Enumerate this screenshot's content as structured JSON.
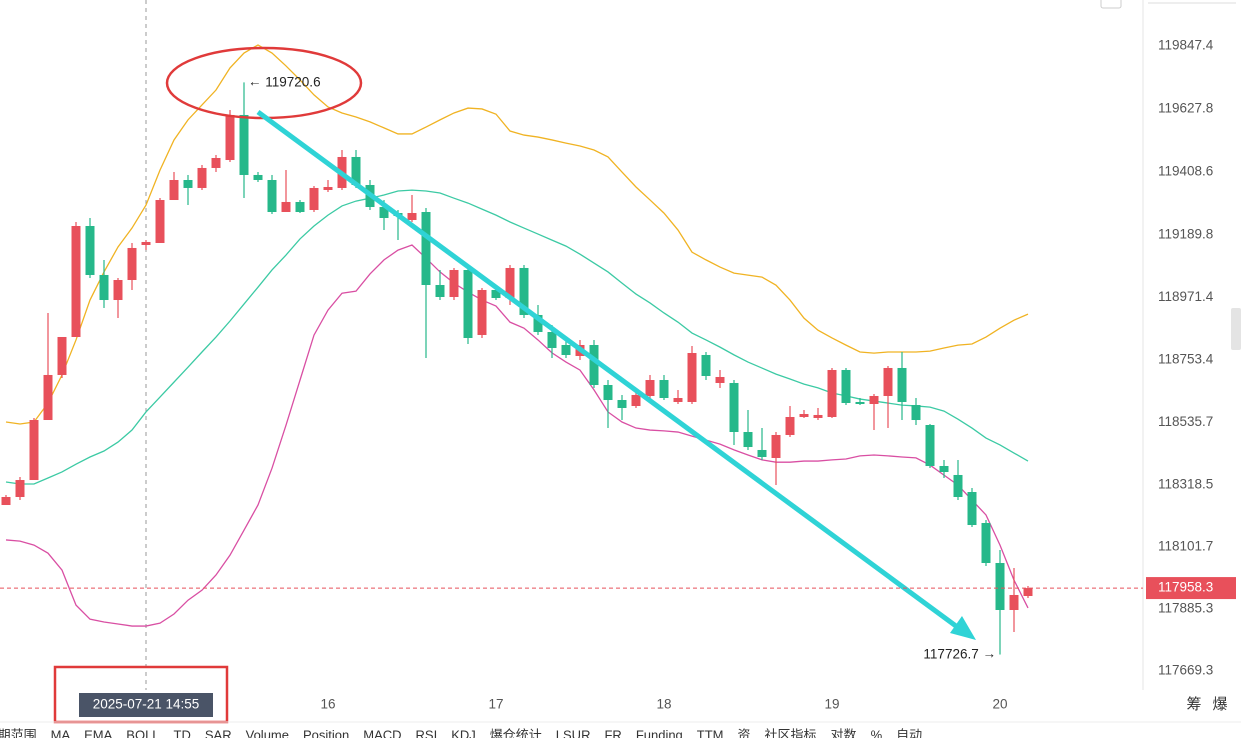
{
  "chart_data": {
    "type": "candlestick",
    "up_color": "#e8505b",
    "down_color": "#26b88a",
    "categories": [
      null,
      null,
      null,
      null,
      null,
      null,
      null,
      null,
      null,
      null,
      "2025-07-21 14:55",
      null,
      null,
      null,
      null,
      null,
      null,
      null,
      null,
      null,
      null,
      null,
      null,
      "16",
      null,
      null,
      null,
      null,
      null,
      null,
      null,
      null,
      null,
      null,
      null,
      "17",
      null,
      null,
      null,
      null,
      null,
      null,
      null,
      null,
      null,
      null,
      null,
      "18",
      null,
      null,
      null,
      null,
      null,
      null,
      null,
      null,
      null,
      null,
      null,
      "19",
      null,
      null,
      null,
      null,
      null,
      null,
      null,
      null,
      null,
      null,
      null,
      "20",
      null,
      null
    ],
    "crosshair_category": 10,
    "open": [
      118247.8,
      118275.7,
      118334.9,
      118544.0,
      118700.9,
      118833.3,
      119220.1,
      119049.4,
      118962.2,
      119031.9,
      119153.9,
      119160.9,
      119310.7,
      119380.4,
      119352.6,
      119422.3,
      119450.1,
      119607.0,
      119397.9,
      119380.4,
      119268.9,
      119303.8,
      119275.9,
      119345.6,
      119352.6,
      119460.6,
      119363.0,
      119286.3,
      119265.4,
      119241.0,
      119268.9,
      119014.5,
      118972.7,
      119066.8,
      118840.3,
      118997.1,
      118969.2,
      119073.8,
      118910.0,
      118850.7,
      118805.4,
      118767.1,
      118805.4,
      118666.0,
      118613.7,
      118592.8,
      118627.7,
      118683.4,
      118606.8,
      118606.8,
      118770.6,
      118673.0,
      118673.0,
      118502.2,
      118439.5,
      118411.6,
      118491.8,
      118554.5,
      118551.0,
      118554.5,
      118718.3,
      118606.8,
      118599.8,
      118627.7,
      118725.3,
      118596.3,
      118526.6,
      118383.7,
      118352.4,
      118293.1,
      118185.1,
      118045.7,
      117881.9,
      117930.7
    ],
    "high": [
      118282.7,
      118345.4,
      118551.0,
      118916.9,
      118833.3,
      119234.1,
      119248.0,
      119101.6,
      119038.9,
      119160.9,
      119171.3,
      119317.7,
      119408.3,
      119397.9,
      119432.7,
      119467.6,
      119624.4,
      119720.6,
      119408.3,
      119397.9,
      119415.3,
      119310.7,
      119359.5,
      119380.4,
      119485.0,
      119485.0,
      119380.4,
      119310.7,
      119275.9,
      119328.2,
      119282.9,
      119066.8,
      119073.8,
      119084.2,
      119004.1,
      119004.1,
      119084.2,
      119084.2,
      118944.8,
      118875.1,
      118822.8,
      118822.8,
      118822.8,
      118683.4,
      118631.2,
      118648.6,
      118700.9,
      118700.9,
      118648.6,
      118801.9,
      118781.0,
      118718.3,
      118683.4,
      118578.9,
      118516.2,
      118502.2,
      118592.8,
      118578.9,
      118585.9,
      118725.3,
      118725.3,
      118620.7,
      118634.6,
      118732.2,
      118781.0,
      118620.7,
      118530.1,
      118404.6,
      118404.6,
      118307.1,
      118195.5,
      118091.0,
      118028.3,
      117965.5
    ],
    "low": [
      118247.8,
      118265.2,
      118334.9,
      118544.0,
      118690.4,
      118833.3,
      119038.9,
      118934.4,
      118899.5,
      118997.1,
      119136.5,
      119160.9,
      119310.7,
      119293.3,
      119345.6,
      119408.3,
      119443.2,
      119317.7,
      119373.5,
      119261.9,
      119268.9,
      119265.4,
      119268.9,
      119338.6,
      119345.6,
      119352.6,
      119275.9,
      119206.2,
      119171.3,
      119234.1,
      118760.1,
      118962.2,
      118962.2,
      118808.9,
      118829.8,
      118962.2,
      118944.8,
      118899.5,
      118840.3,
      118760.1,
      118760.1,
      118753.1,
      118655.6,
      118516.2,
      118544.0,
      118585.9,
      118620.7,
      118613.7,
      118599.8,
      118599.8,
      118683.4,
      118655.6,
      118456.9,
      118439.5,
      118404.6,
      118317.5,
      118484.8,
      118551.0,
      118544.0,
      118551.0,
      118596.3,
      118596.3,
      118509.2,
      118516.2,
      118544.0,
      118526.6,
      118376.8,
      118341.9,
      118265.2,
      118171.1,
      118035.2,
      117726.7,
      117805.2,
      117923.7
    ],
    "close": [
      118275.7,
      118334.9,
      118544.0,
      118700.9,
      118833.3,
      119220.1,
      119049.4,
      118962.2,
      119031.9,
      119143.5,
      119164.4,
      119310.7,
      119380.4,
      119352.6,
      119422.3,
      119457.1,
      119607.0,
      119397.9,
      119380.4,
      119268.9,
      119303.8,
      119268.9,
      119352.6,
      119356.0,
      119460.6,
      119363.0,
      119286.3,
      119248.0,
      119255.0,
      119265.4,
      119014.5,
      118972.7,
      119066.8,
      118829.8,
      118997.1,
      118969.2,
      119073.8,
      118910.0,
      118850.7,
      118795.0,
      118770.6,
      118805.4,
      118666.0,
      118613.7,
      118585.9,
      118631.2,
      118683.4,
      118620.7,
      118620.7,
      118777.5,
      118697.4,
      118693.9,
      118502.2,
      118449.9,
      118415.1,
      118491.8,
      118554.5,
      118564.9,
      118561.5,
      118718.3,
      118603.3,
      118599.8,
      118627.7,
      118725.3,
      118606.8,
      118544.0,
      118383.7,
      118362.8,
      118275.7,
      118178.1,
      118045.7,
      117881.9,
      117934.2,
      117958.3
    ],
    "series": [
      {
        "color": "#f0b323",
        "values": [
          118537,
          118530,
          118537,
          118603,
          118701,
          118823,
          118962,
          119060,
          119147,
          119213,
          119293,
          119415,
          119520,
          119590,
          119642,
          119694,
          119771,
          119823,
          119851,
          119823,
          119778,
          119729,
          119677,
          119635,
          119614,
          119600,
          119583,
          119562,
          119541,
          119541,
          119565,
          119590,
          119614,
          119631,
          119628,
          119610,
          119551,
          119537,
          119530,
          119520,
          119509,
          119499,
          119485,
          119461,
          119408,
          119356,
          119311,
          119265,
          119206,
          119129,
          119102,
          119077,
          119056,
          119049,
          119042,
          119014,
          118962,
          118899,
          118857,
          118830,
          118805,
          118781,
          118777,
          118781,
          118781,
          118781,
          118784,
          118795,
          118805,
          118809,
          118833,
          118864,
          118892,
          118913
        ]
      },
      {
        "color": "#3ccaa4",
        "values": [
          118328,
          118321,
          118321,
          118342,
          118363,
          118390,
          118415,
          118436,
          118467,
          118509,
          118572,
          118624,
          118676,
          118728,
          118781,
          118833,
          118889,
          118948,
          119007,
          119067,
          119119,
          119175,
          119220,
          119258,
          119290,
          119307,
          119317,
          119328,
          119342,
          119345,
          119342,
          119335,
          119317,
          119300,
          119279,
          119258,
          119234,
          119213,
          119192,
          119171,
          119150,
          119122,
          119091,
          119060,
          119021,
          118983,
          118952,
          118917,
          118885,
          118847,
          118823,
          118798,
          118771,
          118746,
          118725,
          118704,
          118687,
          118669,
          118656,
          118638,
          118628,
          118617,
          118610,
          118603,
          118596,
          118593,
          118589,
          118575,
          118547,
          118516,
          118481,
          118457,
          118429,
          118401
        ]
      },
      {
        "color": "#d94fa3",
        "values": [
          118126,
          118122,
          118108,
          118080,
          118021,
          117899,
          117850,
          117840,
          117833,
          117826,
          117826,
          117836,
          117868,
          117916,
          117951,
          118004,
          118073,
          118160,
          118248,
          118376,
          118526,
          118683,
          118840,
          118927,
          118986,
          118993,
          119053,
          119102,
          119136,
          119154,
          119108,
          119060,
          119021,
          118990,
          118962,
          118941,
          118885,
          118864,
          118823,
          118778,
          118746,
          118718,
          118649,
          118572,
          118537,
          118516,
          118509,
          118506,
          118502,
          118488,
          118474,
          118460,
          118440,
          118422,
          118405,
          118397,
          118397,
          118401,
          118401,
          118405,
          118408,
          118419,
          118422,
          118419,
          118415,
          118412,
          118387,
          118352,
          118317,
          118265,
          118213,
          118108,
          117986,
          117889
        ]
      }
    ],
    "ylim": [
      117603.1,
      120007.7
    ],
    "yticks": [
      119847.4,
      119627.8,
      119408.6,
      119189.8,
      118971.4,
      118753.4,
      118535.7,
      118318.5,
      118101.7,
      117885.3,
      117669.3
    ],
    "grid": false,
    "side_icons": [
      "筹",
      "爆"
    ],
    "toolbar": [
      "]期范围",
      "MA",
      "EMA",
      "BOLL",
      "TD",
      "SAR",
      "Volume",
      "Position",
      "MACD",
      "RSI",
      "KDJ",
      "爆仓统计",
      "LSUR",
      "FR",
      "Funding",
      "TTM",
      "资",
      "社区指标",
      "对数",
      "%",
      "自动"
    ]
  }
}
